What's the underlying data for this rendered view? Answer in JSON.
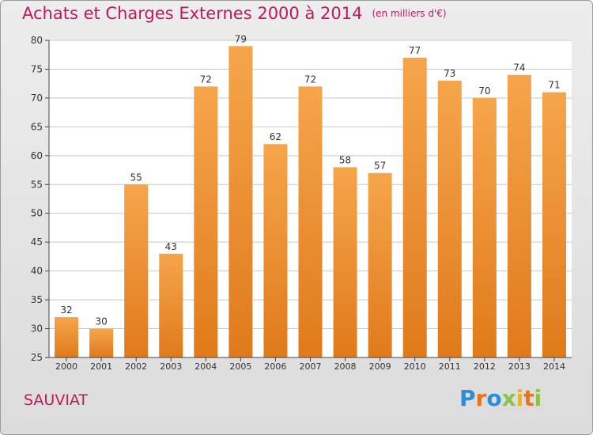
{
  "header": {
    "title": "Achats et Charges Externes 2000 à 2014",
    "subtitle": "(en milliers d'€)"
  },
  "place_label": "SAUVIAT",
  "brand": {
    "text": "Proxiti",
    "letter_colors": [
      "#2a8fd6",
      "#e8731c",
      "#2a8fd6",
      "#8bc34a",
      "#f4b400",
      "#e8731c",
      "#8bc34a"
    ]
  },
  "colors": {
    "title": "#c2185b",
    "bar_light": "#f6a54b",
    "bar_dark": "#e07a1c",
    "grid": "#c7c7c7",
    "axis": "#444444",
    "plot_bg": "#ffffff"
  },
  "chart_data": {
    "type": "bar",
    "categories": [
      "2000",
      "2001",
      "2002",
      "2003",
      "2004",
      "2005",
      "2006",
      "2007",
      "2008",
      "2009",
      "2010",
      "2011",
      "2012",
      "2013",
      "2014"
    ],
    "values": [
      32,
      30,
      55,
      43,
      72,
      79,
      62,
      72,
      58,
      57,
      77,
      73,
      70,
      74,
      71
    ],
    "ylim": [
      25,
      80
    ],
    "yticks": [
      25,
      30,
      35,
      40,
      45,
      50,
      55,
      60,
      65,
      70,
      75,
      80
    ],
    "xlabel": "",
    "ylabel": "",
    "grid": true,
    "data_labels": true
  }
}
